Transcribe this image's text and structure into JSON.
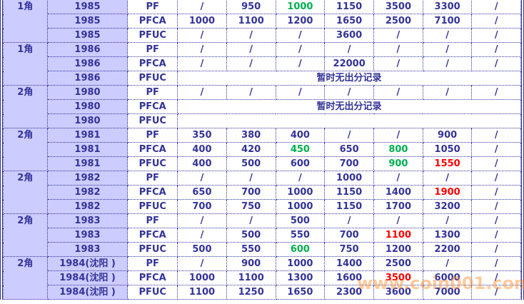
{
  "colors": {
    "text": "#333399",
    "header_bg": "#ccccff",
    "green": "#00b050",
    "red": "#ff0000"
  },
  "watermark": "www.coin001.com",
  "groups": [
    {
      "denom": "1角",
      "rows": [
        {
          "year": "1985",
          "type": "PF",
          "values": [
            "/",
            "950",
            "1000",
            "1150",
            "3500",
            "3300",
            "/"
          ],
          "colors": {
            "2": "green"
          }
        },
        {
          "year": "1985",
          "type": "PFCA",
          "values": [
            "1000",
            "1100",
            "1200",
            "1650",
            "2500",
            "7100",
            "/"
          ]
        },
        {
          "year": "1985",
          "type": "PFUC",
          "values": [
            "/",
            "/",
            "/",
            "3600",
            "/",
            "/",
            "/"
          ]
        }
      ]
    },
    {
      "denom": "1角",
      "rows": [
        {
          "year": "1986",
          "type": "PF",
          "values": [
            "/",
            "/",
            "/",
            "/",
            "/",
            "/",
            "/"
          ]
        },
        {
          "year": "1986",
          "type": "PFCA",
          "values": [
            "/",
            "/",
            "/",
            "22000",
            "/",
            "/",
            "/"
          ]
        },
        {
          "year": "1986",
          "type": "PFUC",
          "note": "暂时无出分记录"
        }
      ]
    },
    {
      "denom": "2角",
      "rows": [
        {
          "year": "1980",
          "type": "PF",
          "values": [
            "/",
            "/",
            "/",
            "/",
            "/",
            "/",
            "/"
          ]
        },
        {
          "year": "1980",
          "type": "PFCA",
          "note": "暂时无出分记录"
        },
        {
          "year": "1980",
          "type": "PFUC",
          "note": ""
        }
      ]
    },
    {
      "denom": "2角",
      "rows": [
        {
          "year": "1981",
          "type": "PF",
          "values": [
            "350",
            "380",
            "400",
            "/",
            "/",
            "900",
            "/"
          ]
        },
        {
          "year": "1981",
          "type": "PFCA",
          "values": [
            "400",
            "420",
            "450",
            "650",
            "800",
            "1050",
            "/"
          ],
          "colors": {
            "2": "green",
            "4": "green"
          }
        },
        {
          "year": "1981",
          "type": "PFUC",
          "values": [
            "400",
            "500",
            "600",
            "700",
            "900",
            "1550",
            "/"
          ],
          "colors": {
            "4": "green",
            "5": "red"
          }
        }
      ]
    },
    {
      "denom": "2角",
      "rows": [
        {
          "year": "1982",
          "type": "PF",
          "values": [
            "/",
            "/",
            "/",
            "1000",
            "/",
            "/",
            "/"
          ]
        },
        {
          "year": "1982",
          "type": "PFCA",
          "values": [
            "650",
            "700",
            "1000",
            "1150",
            "1400",
            "1900",
            "/"
          ],
          "colors": {
            "5": "red"
          }
        },
        {
          "year": "1982",
          "type": "PFUC",
          "values": [
            "700",
            "750",
            "1000",
            "1150",
            "1700",
            "3200",
            "/"
          ]
        }
      ]
    },
    {
      "denom": "2角",
      "rows": [
        {
          "year": "1983",
          "type": "PF",
          "values": [
            "/",
            "/",
            "500",
            "/",
            "/",
            "/",
            "/"
          ]
        },
        {
          "year": "1983",
          "type": "PFCA",
          "values": [
            "/",
            "500",
            "550",
            "700",
            "1100",
            "1300",
            "/"
          ],
          "colors": {
            "4": "red"
          }
        },
        {
          "year": "1983",
          "type": "PFUC",
          "values": [
            "500",
            "550",
            "600",
            "750",
            "1200",
            "2200",
            "/"
          ],
          "colors": {
            "2": "green"
          }
        }
      ]
    },
    {
      "denom": "2角",
      "rows": [
        {
          "year": "1984(沈阳 )",
          "type": "PF",
          "values": [
            "/",
            "900",
            "1000",
            "1400",
            "2500",
            "/",
            "/"
          ]
        },
        {
          "year": "1984(沈阳 )",
          "type": "PFCA",
          "values": [
            "1000",
            "1100",
            "1300",
            "1600",
            "3500",
            "6000",
            "/"
          ],
          "colors": {
            "4": "red"
          }
        },
        {
          "year": "1984(沈阳 )",
          "type": "PFUC",
          "values": [
            "1100",
            "1250",
            "1650",
            "2300",
            "3600",
            "7000",
            "/"
          ]
        }
      ]
    }
  ]
}
